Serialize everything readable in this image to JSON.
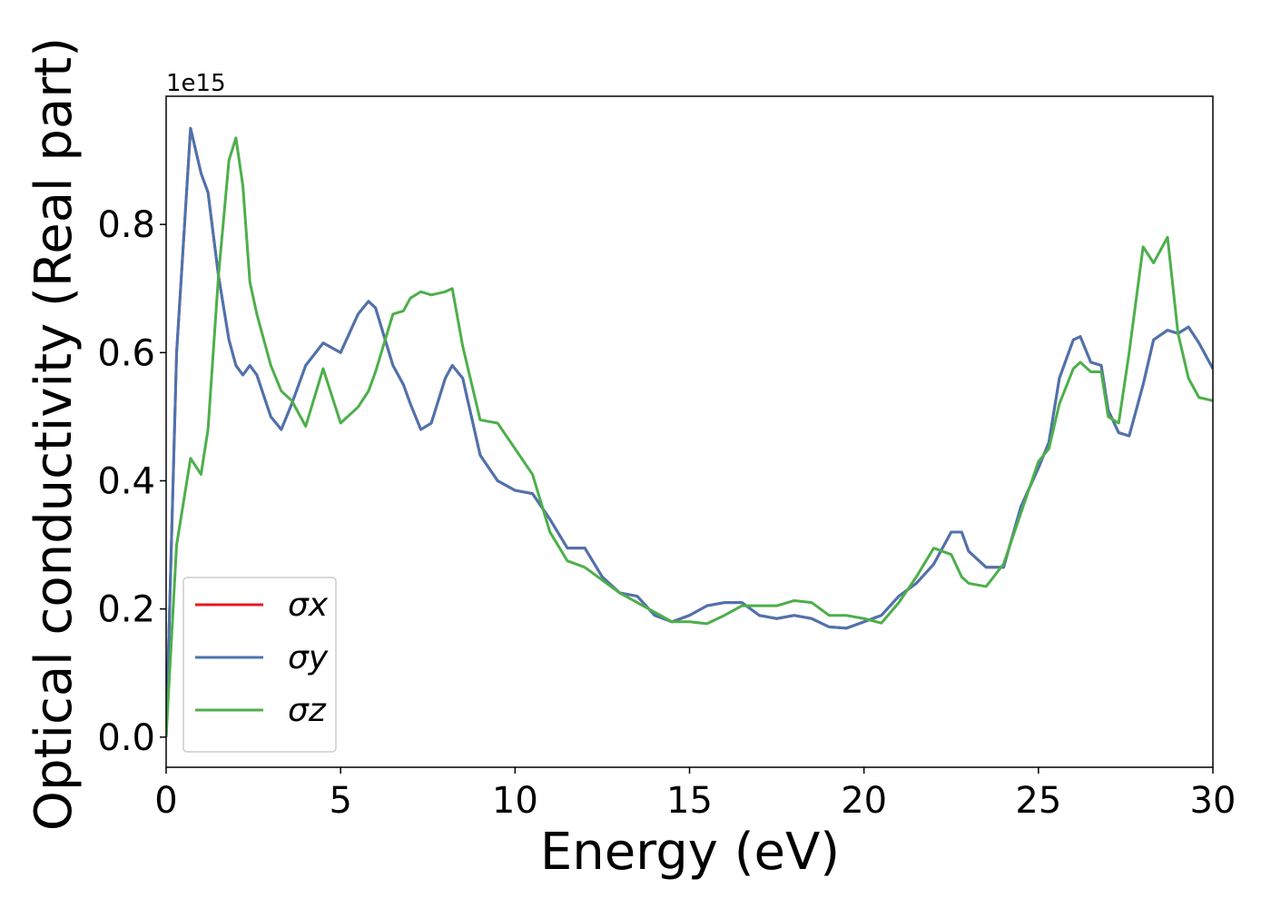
{
  "chart_data": {
    "type": "line",
    "xlabel": "Energy (eV)",
    "ylabel": "Optical conductivity (Real part)",
    "y_offset_label": "1e15",
    "x": [
      0,
      0.3,
      0.7,
      1.0,
      1.2,
      1.5,
      1.8,
      2.0,
      2.2,
      2.4,
      2.6,
      3.0,
      3.3,
      3.6,
      4.0,
      4.5,
      5.0,
      5.5,
      5.8,
      6.0,
      6.5,
      6.8,
      7.0,
      7.3,
      7.6,
      8.0,
      8.2,
      8.5,
      9.0,
      9.5,
      10,
      10.5,
      11,
      11.5,
      12,
      12.5,
      13,
      13.5,
      14,
      14.5,
      15,
      15.5,
      16,
      16.5,
      17,
      17.5,
      18,
      18.5,
      19,
      19.5,
      20,
      20.5,
      21,
      21.5,
      22,
      22.5,
      22.8,
      23,
      23.5,
      24,
      24.5,
      25,
      25.3,
      25.6,
      26,
      26.2,
      26.5,
      26.8,
      27,
      27.3,
      27.6,
      28,
      28.3,
      28.7,
      29,
      29.3,
      29.6,
      30
    ],
    "series": [
      {
        "name": "σx",
        "color": "#e41a1c",
        "values": [
          0,
          0.6,
          0.95,
          0.88,
          0.85,
          0.72,
          0.62,
          0.58,
          0.565,
          0.58,
          0.565,
          0.5,
          0.48,
          0.52,
          0.58,
          0.615,
          0.6,
          0.66,
          0.68,
          0.67,
          0.58,
          0.55,
          0.52,
          0.48,
          0.49,
          0.56,
          0.58,
          0.56,
          0.44,
          0.4,
          0.385,
          0.38,
          0.34,
          0.295,
          0.295,
          0.25,
          0.225,
          0.22,
          0.19,
          0.18,
          0.19,
          0.205,
          0.21,
          0.21,
          0.19,
          0.185,
          0.19,
          0.185,
          0.172,
          0.17,
          0.18,
          0.19,
          0.22,
          0.24,
          0.27,
          0.32,
          0.32,
          0.29,
          0.265,
          0.265,
          0.36,
          0.42,
          0.46,
          0.56,
          0.62,
          0.625,
          0.585,
          0.58,
          0.51,
          0.475,
          0.47,
          0.55,
          0.62,
          0.635,
          0.63,
          0.64,
          0.615,
          0.575
        ]
      },
      {
        "name": "σy",
        "color": "#4a74b0",
        "values": [
          0,
          0.6,
          0.95,
          0.88,
          0.85,
          0.72,
          0.62,
          0.58,
          0.565,
          0.58,
          0.565,
          0.5,
          0.48,
          0.52,
          0.58,
          0.615,
          0.6,
          0.66,
          0.68,
          0.67,
          0.58,
          0.55,
          0.52,
          0.48,
          0.49,
          0.56,
          0.58,
          0.56,
          0.44,
          0.4,
          0.385,
          0.38,
          0.34,
          0.295,
          0.295,
          0.25,
          0.225,
          0.22,
          0.19,
          0.18,
          0.19,
          0.205,
          0.21,
          0.21,
          0.19,
          0.185,
          0.19,
          0.185,
          0.172,
          0.17,
          0.18,
          0.19,
          0.22,
          0.24,
          0.27,
          0.32,
          0.32,
          0.29,
          0.265,
          0.265,
          0.36,
          0.42,
          0.46,
          0.56,
          0.62,
          0.625,
          0.585,
          0.58,
          0.51,
          0.475,
          0.47,
          0.55,
          0.62,
          0.635,
          0.63,
          0.64,
          0.615,
          0.575
        ]
      },
      {
        "name": "σz",
        "color": "#4daf4a",
        "values": [
          0,
          0.3,
          0.435,
          0.41,
          0.48,
          0.72,
          0.9,
          0.935,
          0.86,
          0.71,
          0.66,
          0.58,
          0.54,
          0.525,
          0.485,
          0.575,
          0.49,
          0.515,
          0.54,
          0.57,
          0.66,
          0.665,
          0.685,
          0.695,
          0.69,
          0.695,
          0.7,
          0.61,
          0.495,
          0.49,
          0.45,
          0.41,
          0.32,
          0.275,
          0.265,
          0.245,
          0.225,
          0.21,
          0.195,
          0.18,
          0.18,
          0.177,
          0.19,
          0.205,
          0.205,
          0.205,
          0.213,
          0.21,
          0.19,
          0.19,
          0.185,
          0.178,
          0.21,
          0.25,
          0.295,
          0.285,
          0.25,
          0.24,
          0.235,
          0.27,
          0.35,
          0.43,
          0.45,
          0.52,
          0.575,
          0.585,
          0.57,
          0.57,
          0.5,
          0.49,
          0.6,
          0.765,
          0.74,
          0.78,
          0.63,
          0.56,
          0.53,
          0.525
        ]
      }
    ],
    "xlim": [
      0,
      30
    ],
    "xticks": [
      0,
      5,
      10,
      15,
      20,
      25,
      30
    ],
    "ylim": [
      -0.047,
      1.0
    ],
    "yticks": [
      {
        "value": 0,
        "label": "0.0"
      },
      0.2,
      0.4,
      0.6,
      0.8
    ],
    "legend": "lower left"
  }
}
